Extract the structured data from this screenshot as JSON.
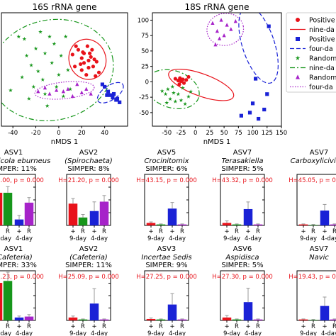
{
  "palette": {
    "red": "#e8121a",
    "green": "#17961b",
    "blue": "#1a22d6",
    "purple": "#a623c9",
    "pink": "#e86f9d",
    "ltblue": "#8ea2e0"
  },
  "chart_data": [
    {
      "type": "scatter",
      "title": "16S rRNA gene",
      "xlabel": "nMDS 1",
      "xlim": [
        -50,
        60
      ],
      "ylim": [
        -45,
        50
      ],
      "xticks": [
        -40,
        -20,
        0,
        20,
        40
      ],
      "series": [
        {
          "name": "Positive",
          "color": "#e8121a",
          "marker": "circle",
          "points": [
            [
              12,
              15
            ],
            [
              15,
              22
            ],
            [
              17,
              19
            ],
            [
              20,
              12
            ],
            [
              21,
              17
            ],
            [
              22,
              8
            ],
            [
              22,
              16
            ],
            [
              25,
              22
            ],
            [
              26,
              10
            ],
            [
              26,
              4
            ],
            [
              27,
              16
            ],
            [
              28,
              13
            ],
            [
              30,
              5
            ],
            [
              31,
              11
            ],
            [
              32,
              -3
            ],
            [
              33,
              9
            ],
            [
              35,
              0
            ],
            [
              20,
              2
            ],
            [
              24,
              -2
            ],
            [
              14,
              5
            ],
            [
              19,
              7
            ],
            [
              29,
              19
            ]
          ]
        },
        {
          "name": "Positive",
          "color": "#1a22d6",
          "marker": "square",
          "points": [
            [
              38,
              -10
            ],
            [
              40,
              -12
            ],
            [
              43,
              -16
            ],
            [
              45,
              -19
            ],
            [
              47,
              -21
            ],
            [
              48,
              -18
            ],
            [
              50,
              -23
            ],
            [
              51,
              -22
            ],
            [
              53,
              -25
            ],
            [
              42,
              -19
            ]
          ]
        },
        {
          "name": "Random",
          "color": "#17961b",
          "marker": "star",
          "points": [
            [
              -42,
              -15
            ],
            [
              -35,
              30
            ],
            [
              -30,
              28
            ],
            [
              -28,
              14
            ],
            [
              -26,
              -22
            ],
            [
              -24,
              6
            ],
            [
              -22,
              -12
            ],
            [
              -20,
              20
            ],
            [
              -18,
              1
            ],
            [
              -16,
              34
            ],
            [
              -14,
              -6
            ],
            [
              -12,
              16
            ],
            [
              -10,
              -28
            ],
            [
              -8,
              30
            ],
            [
              -6,
              8
            ],
            [
              -4,
              24
            ],
            [
              -2,
              -12
            ],
            [
              0,
              -2
            ],
            [
              2,
              14
            ],
            [
              4,
              -20
            ],
            [
              6,
              30
            ],
            [
              8,
              2
            ],
            [
              10,
              -14
            ],
            [
              -12,
              -18
            ],
            [
              -32,
              -4
            ]
          ]
        },
        {
          "name": "Random",
          "color": "#a623c9",
          "marker": "triangle",
          "points": [
            [
              -18,
              -16
            ],
            [
              -12,
              -13
            ],
            [
              -8,
              -18
            ],
            [
              -2,
              -15
            ],
            [
              4,
              -16
            ],
            [
              8,
              -14
            ],
            [
              12,
              -20
            ],
            [
              16,
              -10
            ],
            [
              20,
              -17
            ],
            [
              24,
              -14
            ],
            [
              28,
              -18
            ]
          ]
        }
      ],
      "ellipses": [
        {
          "color": "#17961b",
          "style": "dashdot",
          "cx": -6,
          "cy": 2,
          "rx": 54,
          "ry": 42,
          "angle": -12
        },
        {
          "color": "#e8121a",
          "style": "solid",
          "cx": 25,
          "cy": 11,
          "rx": 16,
          "ry": 17,
          "angle": -20
        },
        {
          "color": "#a623c9",
          "style": "dotted",
          "cx": 5,
          "cy": -15,
          "rx": 26,
          "ry": 7,
          "angle": -6
        },
        {
          "color": "#1a22d6",
          "style": "dashed",
          "cx": 45,
          "cy": -17,
          "rx": 13,
          "ry": 6,
          "angle": -34
        }
      ]
    },
    {
      "type": "scatter",
      "title": "18S rRNA gene",
      "xlabel": "nMDS 1",
      "xlim": [
        -75,
        150
      ],
      "ylim": [
        -72,
        112
      ],
      "xticks": [
        -50,
        -25,
        0,
        25,
        50,
        75,
        100,
        125,
        150
      ],
      "yticks": [
        -50,
        -25,
        0,
        25,
        50,
        75,
        100
      ],
      "series": [
        {
          "name": "Positive",
          "color": "#e8121a",
          "marker": "circle",
          "points": [
            [
              -35,
              5
            ],
            [
              -30,
              2
            ],
            [
              -27,
              6
            ],
            [
              -25,
              1
            ],
            [
              -22,
              4
            ],
            [
              -20,
              -2
            ],
            [
              -16,
              3
            ],
            [
              -12,
              8
            ],
            [
              -28,
              -4
            ]
          ]
        },
        {
          "name": "Positive",
          "color": "#1a22d6",
          "marker": "square",
          "points": [
            [
              80,
              -55
            ],
            [
              95,
              -50
            ],
            [
              100,
              -35
            ],
            [
              110,
              -60
            ],
            [
              120,
              -45
            ],
            [
              125,
              -20
            ],
            [
              128,
              90
            ],
            [
              105,
              5
            ]
          ]
        },
        {
          "name": "Random",
          "color": "#17961b",
          "marker": "star",
          "points": [
            [
              -58,
              -15
            ],
            [
              -52,
              -20
            ],
            [
              -48,
              -12
            ],
            [
              -44,
              -28
            ],
            [
              -40,
              -8
            ],
            [
              -38,
              -18
            ],
            [
              -35,
              -32
            ],
            [
              -30,
              -20
            ],
            [
              -25,
              -30
            ],
            [
              -22,
              -10
            ],
            [
              -18,
              -36
            ],
            [
              -12,
              -24
            ],
            [
              -8,
              -16
            ],
            [
              -50,
              -34
            ]
          ]
        },
        {
          "name": "Random",
          "color": "#a623c9",
          "marker": "triangle",
          "points": [
            [
              30,
              95
            ],
            [
              38,
              82
            ],
            [
              45,
              100
            ],
            [
              50,
              75
            ],
            [
              55,
              92
            ],
            [
              62,
              85
            ],
            [
              70,
              98
            ],
            [
              42,
              70
            ],
            [
              35,
              60
            ]
          ]
        }
      ],
      "ellipses": [
        {
          "color": "#17961b",
          "style": "dashdot",
          "cx": -40,
          "cy": -12,
          "rx": 48,
          "ry": 30,
          "angle": 18
        },
        {
          "color": "#e8121a",
          "style": "solid",
          "cx": 10,
          "cy": -5,
          "rx": 60,
          "ry": 18,
          "angle": 20
        },
        {
          "color": "#a623c9",
          "style": "dotted",
          "cx": 52,
          "cy": 85,
          "rx": 32,
          "ry": 26,
          "angle": -10
        },
        {
          "color": "#1a22d6",
          "style": "dashed",
          "cx": 110,
          "cy": 60,
          "rx": 28,
          "ry": 65,
          "angle": -18
        }
      ]
    },
    {
      "type": "bar",
      "row": 1,
      "col": 0,
      "title": "ASV1",
      "subtitle": "Aliaghicola eburneus",
      "simper": "SIMPER: 11%",
      "stat": "H=27.00, p = 0.000",
      "ymax": 1,
      "values": [
        0.66,
        0.66,
        0.12,
        0.46
      ],
      "errors": [
        0.12,
        0.12,
        0.08,
        0.1
      ],
      "categories": [
        "+",
        "R",
        "+",
        "R"
      ],
      "groups": [
        "9-day",
        "4-day"
      ]
    },
    {
      "type": "bar",
      "row": 1,
      "col": 1,
      "title": "ASV2",
      "subtitle": "(Spirochaeta)",
      "simper": "SIMPER: 8%",
      "stat": "H=21.20, p = 0.000",
      "ymax": 1,
      "values": [
        0.44,
        0.16,
        0.29,
        0.48
      ],
      "errors": [
        0.1,
        0.06,
        0.18,
        0.12
      ],
      "categories": [
        "+",
        "R",
        "+",
        "R"
      ],
      "groups": [
        "9-day",
        "4-day"
      ]
    },
    {
      "type": "bar",
      "row": 1,
      "col": 2,
      "title": "ASV5",
      "subtitle": "Crocinitomix",
      "simper": "SIMPER: 6%",
      "stat": "H=43.15, p = 0.000",
      "ymax": 1,
      "values": [
        0.05,
        0.02,
        0.34,
        0.02
      ],
      "errors": [
        0.02,
        0.01,
        0.12,
        0.01
      ],
      "categories": [
        "+",
        "R",
        "+",
        "R"
      ],
      "groups": [
        "9-day",
        "4-day"
      ]
    },
    {
      "type": "bar",
      "row": 1,
      "col": 3,
      "title": "ASV7",
      "subtitle": "Terasakiella",
      "simper": "SIMPER: 5%",
      "stat": "H=43.32, p = 0.000",
      "ymax": 1,
      "values": [
        0.05,
        0.02,
        0.33,
        0.02
      ],
      "errors": [
        0.04,
        0.01,
        0.14,
        0.01
      ],
      "categories": [
        "+",
        "R",
        "+",
        "R"
      ],
      "groups": [
        "9-day",
        "4-day"
      ]
    },
    {
      "type": "bar",
      "row": 1,
      "col": 4,
      "title": "ASV7",
      "subtitle": "Carboxylicivirga",
      "simper": "",
      "stat": "H=45.05, p = 0.000",
      "ymax": 1,
      "values": [
        0.02,
        0.01,
        0.3,
        0.02
      ],
      "errors": [
        0.01,
        0.01,
        0.12,
        0.01
      ],
      "categories": [
        "+",
        "R",
        "+",
        "R"
      ],
      "groups": [
        "9-day",
        "4-day"
      ]
    },
    {
      "type": "bar",
      "row": 2,
      "col": 0,
      "title": "ASV1",
      "subtitle": "(Cafeteria)",
      "simper": "SIMPER: 33%",
      "stat": "H=30.23, p = 0.000",
      "ymax": 1,
      "values": [
        0.78,
        0.82,
        0.06,
        0.08
      ],
      "errors": [
        0.2,
        0.22,
        0.03,
        0.04
      ],
      "categories": [
        "+",
        "R",
        "+",
        "R"
      ],
      "groups": [
        "9-day",
        "4-day"
      ]
    },
    {
      "type": "bar",
      "row": 2,
      "col": 1,
      "title": "ASV2",
      "subtitle": "(Cafeteria)",
      "simper": "SIMPER: 11%",
      "stat": "H=25.09, p = 0.000",
      "ymax": 1,
      "values": [
        0.06,
        0.02,
        0.35,
        0.02
      ],
      "errors": [
        0.03,
        0.01,
        0.3,
        0.01
      ],
      "categories": [
        "+",
        "R",
        "+",
        "R"
      ],
      "groups": [
        "9-day",
        "4-day"
      ]
    },
    {
      "type": "bar",
      "row": 2,
      "col": 2,
      "title": "ASV3",
      "subtitle": "Incertae Sedis",
      "simper": "SIMPER: 9%",
      "stat": "H=27.25, p = 0.000",
      "ymax": 1,
      "values": [
        0.03,
        0.02,
        0.33,
        0.02
      ],
      "errors": [
        0.02,
        0.01,
        0.22,
        0.01
      ],
      "categories": [
        "+",
        "R",
        "+",
        "R"
      ],
      "groups": [
        "9-day",
        "4-day"
      ]
    },
    {
      "type": "bar",
      "row": 2,
      "col": 3,
      "title": "ASV6",
      "subtitle": "Aspidisca",
      "simper": "SIMPER: 5%",
      "stat": "H=27.30, p = 0.000",
      "ymax": 1,
      "values": [
        0.06,
        0.02,
        0.38,
        0.02
      ],
      "errors": [
        0.04,
        0.01,
        0.28,
        0.01
      ],
      "categories": [
        "+",
        "R",
        "+",
        "R"
      ],
      "groups": [
        "9-day",
        "4-day"
      ]
    },
    {
      "type": "bar",
      "row": 2,
      "col": 4,
      "title": "ASV7",
      "subtitle": "Navic",
      "simper": "",
      "stat": "H=19.43, p = 0.000",
      "ymax": 1,
      "values": [
        0.02,
        0.01,
        0.3,
        0.02
      ],
      "errors": [
        0.01,
        0.01,
        0.18,
        0.01
      ],
      "categories": [
        "+",
        "R",
        "+",
        "R"
      ],
      "groups": [
        "9-day",
        "4-day"
      ]
    }
  ],
  "legend": [
    {
      "label": "Positive",
      "kind": "marker",
      "marker": "circle",
      "color": "#e8121a"
    },
    {
      "label": "nine-da",
      "kind": "line",
      "style": "solid",
      "color": "#e8121a"
    },
    {
      "label": "Positive",
      "kind": "marker",
      "marker": "square",
      "color": "#1a22d6"
    },
    {
      "label": "four-da",
      "kind": "line",
      "style": "dashed",
      "color": "#1a22d6"
    },
    {
      "label": "Random",
      "kind": "marker",
      "marker": "star",
      "color": "#17961b"
    },
    {
      "label": "nine-da",
      "kind": "line",
      "style": "dashdot",
      "color": "#17961b"
    },
    {
      "label": "Random",
      "kind": "marker",
      "marker": "triangle",
      "color": "#a623c9"
    },
    {
      "label": "four-da",
      "kind": "line",
      "style": "dotted",
      "color": "#a623c9"
    }
  ]
}
